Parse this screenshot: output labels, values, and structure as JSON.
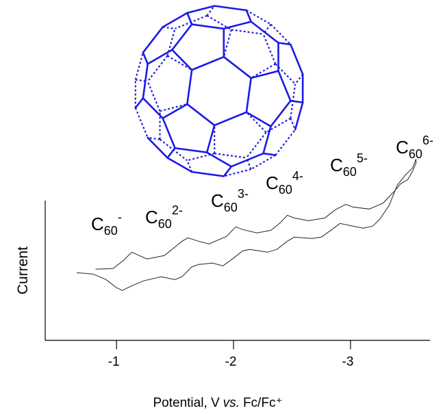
{
  "chart_data": {
    "type": "line",
    "x_label_parts": [
      "Potential, V",
      "vs.",
      "Fc/Fc⁺"
    ],
    "y_label": "Current",
    "xlim": [
      -0.39,
      -3.68
    ],
    "xticks": [
      -1,
      -2,
      -3
    ],
    "ylim": [
      0,
      135
    ],
    "annotations": [
      {
        "text": "C",
        "sub": "60",
        "sup": "-"
      },
      {
        "text": "C",
        "sub": "60",
        "sup": "2-"
      },
      {
        "text": "C",
        "sub": "60",
        "sup": "3-"
      },
      {
        "text": "C",
        "sub": "60",
        "sup": "4-"
      },
      {
        "text": "C",
        "sub": "60",
        "sup": "5-"
      },
      {
        "text": "C",
        "sub": "60",
        "sup": "6-"
      }
    ],
    "series": [
      {
        "color": "#222222",
        "x": [
          -0.82,
          -0.97,
          -1.06,
          -1.13,
          -1.18,
          -1.26,
          -1.41,
          -1.56,
          -1.61,
          -1.7,
          -1.79,
          -1.94,
          -2.02,
          -2.08,
          -2.2,
          -2.32,
          -2.4,
          -2.46,
          -2.52,
          -2.64,
          -2.78,
          -2.87,
          -2.96,
          -3.02,
          -3.16,
          -3.28,
          -3.37,
          -3.43,
          -3.49,
          -3.53,
          -3.56,
          -3.56
        ],
        "values": [
          51.0,
          51.5,
          57.4,
          63.2,
          61.3,
          58.3,
          60.8,
          71.1,
          73.5,
          71.1,
          69.1,
          74.5,
          81.4,
          79.4,
          77.0,
          78.9,
          84.3,
          89.7,
          87.7,
          85.8,
          87.7,
          93.6,
          97.5,
          95.6,
          94.1,
          98.5,
          106.4,
          112.3,
          115.2,
          121.1,
          127.0,
          129.9
        ]
      },
      {
        "color": "#222222",
        "x": [
          -0.66,
          -0.8,
          -0.91,
          -1.0,
          -1.05,
          -1.12,
          -1.23,
          -1.38,
          -1.5,
          -1.56,
          -1.64,
          -1.7,
          -1.82,
          -1.91,
          -1.99,
          -2.08,
          -2.14,
          -2.29,
          -2.37,
          -2.46,
          -2.52,
          -2.67,
          -2.75,
          -2.84,
          -2.91,
          -2.99,
          -3.11,
          -3.19,
          -3.25,
          -3.33,
          -3.4,
          -3.47,
          -3.53,
          -3.56
        ],
        "values": [
          48.5,
          47.5,
          43.6,
          37.7,
          35.8,
          38.7,
          42.6,
          45.6,
          43.6,
          45.6,
          52.5,
          54.4,
          55.4,
          53.4,
          58.3,
          64.2,
          65.2,
          63.2,
          65.2,
          71.1,
          74.0,
          73.0,
          74.0,
          79.4,
          83.8,
          82.4,
          80.4,
          81.9,
          86.8,
          96.6,
          111.3,
          118.6,
          123.5,
          129.9
        ]
      }
    ]
  }
}
